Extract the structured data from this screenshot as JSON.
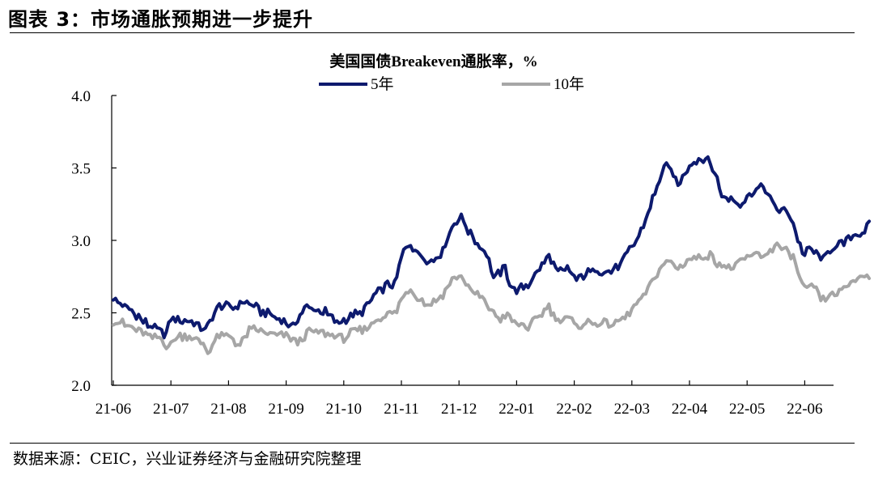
{
  "figure": {
    "title": "图表 3：市场通胀预期进一步提升",
    "source": "数据来源：CEIC，兴业证券经济与金融研究院整理"
  },
  "chart_data": {
    "type": "line",
    "title": "美国国债Breakeven通胀率，%",
    "xlabel": "",
    "ylabel": "",
    "ylim": [
      2.0,
      4.0
    ],
    "yticks": [
      "2.0",
      "2.5",
      "3.0",
      "3.5",
      "4.0"
    ],
    "xticks": [
      "21-06",
      "21-07",
      "21-08",
      "21-09",
      "21-10",
      "21-11",
      "21-12",
      "22-01",
      "22-02",
      "22-03",
      "22-04",
      "22-05",
      "22-06"
    ],
    "grid": false,
    "legend_position": "top",
    "series": [
      {
        "name": "5年",
        "color": "#0d1a6e",
        "anchors": [
          [
            0,
            2.6
          ],
          [
            0.3,
            2.52
          ],
          [
            0.6,
            2.42
          ],
          [
            0.9,
            2.34
          ],
          [
            1.0,
            2.46
          ],
          [
            1.3,
            2.44
          ],
          [
            1.6,
            2.39
          ],
          [
            1.85,
            2.55
          ],
          [
            2.1,
            2.54
          ],
          [
            2.3,
            2.58
          ],
          [
            2.6,
            2.5
          ],
          [
            2.9,
            2.46
          ],
          [
            3.1,
            2.4
          ],
          [
            3.3,
            2.53
          ],
          [
            3.5,
            2.53
          ],
          [
            3.7,
            2.5
          ],
          [
            3.9,
            2.42
          ],
          [
            4.1,
            2.48
          ],
          [
            4.3,
            2.5
          ],
          [
            4.5,
            2.6
          ],
          [
            4.75,
            2.7
          ],
          [
            4.9,
            2.7
          ],
          [
            5.0,
            2.89
          ],
          [
            5.15,
            2.98
          ],
          [
            5.3,
            2.9
          ],
          [
            5.5,
            2.85
          ],
          [
            5.7,
            2.92
          ],
          [
            5.9,
            3.11
          ],
          [
            6.05,
            3.17
          ],
          [
            6.15,
            3.07
          ],
          [
            6.3,
            2.99
          ],
          [
            6.5,
            2.9
          ],
          [
            6.6,
            2.73
          ],
          [
            6.8,
            2.81
          ],
          [
            6.9,
            2.68
          ],
          [
            7.0,
            2.65
          ],
          [
            7.2,
            2.7
          ],
          [
            7.4,
            2.8
          ],
          [
            7.55,
            2.9
          ],
          [
            7.7,
            2.78
          ],
          [
            7.9,
            2.8
          ],
          [
            8.05,
            2.72
          ],
          [
            8.2,
            2.78
          ],
          [
            8.4,
            2.8
          ],
          [
            8.6,
            2.78
          ],
          [
            8.8,
            2.83
          ],
          [
            9.0,
            2.96
          ],
          [
            9.15,
            3.05
          ],
          [
            9.3,
            3.22
          ],
          [
            9.45,
            3.38
          ],
          [
            9.55,
            3.52
          ],
          [
            9.7,
            3.48
          ],
          [
            9.8,
            3.37
          ],
          [
            10.0,
            3.52
          ],
          [
            10.15,
            3.56
          ],
          [
            10.3,
            3.58
          ],
          [
            10.45,
            3.45
          ],
          [
            10.6,
            3.28
          ],
          [
            10.75,
            3.3
          ],
          [
            10.85,
            3.25
          ],
          [
            11.0,
            3.3
          ],
          [
            11.15,
            3.35
          ],
          [
            11.3,
            3.37
          ],
          [
            11.45,
            3.25
          ],
          [
            11.6,
            3.2
          ],
          [
            11.75,
            3.18
          ],
          [
            11.9,
            2.98
          ],
          [
            12.0,
            2.9
          ],
          [
            12.1,
            2.95
          ],
          [
            12.3,
            2.87
          ],
          [
            12.5,
            2.95
          ],
          [
            12.7,
            2.98
          ],
          [
            12.8,
            3.03
          ],
          [
            13.0,
            3.05
          ],
          [
            13.15,
            3.13
          ]
        ]
      },
      {
        "name": "10年",
        "color": "#a6a6a6",
        "anchors": [
          [
            0,
            2.45
          ],
          [
            0.3,
            2.4
          ],
          [
            0.5,
            2.37
          ],
          [
            0.65,
            2.33
          ],
          [
            0.8,
            2.33
          ],
          [
            0.95,
            2.26
          ],
          [
            1.1,
            2.34
          ],
          [
            1.3,
            2.34
          ],
          [
            1.55,
            2.29
          ],
          [
            1.65,
            2.23
          ],
          [
            1.8,
            2.33
          ],
          [
            2.0,
            2.34
          ],
          [
            2.2,
            2.28
          ],
          [
            2.35,
            2.38
          ],
          [
            2.55,
            2.38
          ],
          [
            2.75,
            2.35
          ],
          [
            3.0,
            2.35
          ],
          [
            3.2,
            2.3
          ],
          [
            3.4,
            2.37
          ],
          [
            3.6,
            2.37
          ],
          [
            3.8,
            2.35
          ],
          [
            4.0,
            2.32
          ],
          [
            4.15,
            2.37
          ],
          [
            4.35,
            2.38
          ],
          [
            4.5,
            2.43
          ],
          [
            4.7,
            2.48
          ],
          [
            4.9,
            2.5
          ],
          [
            5.0,
            2.6
          ],
          [
            5.15,
            2.67
          ],
          [
            5.3,
            2.6
          ],
          [
            5.5,
            2.55
          ],
          [
            5.7,
            2.62
          ],
          [
            5.9,
            2.73
          ],
          [
            6.05,
            2.76
          ],
          [
            6.2,
            2.65
          ],
          [
            6.35,
            2.62
          ],
          [
            6.55,
            2.53
          ],
          [
            6.7,
            2.45
          ],
          [
            6.85,
            2.48
          ],
          [
            7.0,
            2.42
          ],
          [
            7.2,
            2.4
          ],
          [
            7.4,
            2.48
          ],
          [
            7.55,
            2.55
          ],
          [
            7.7,
            2.45
          ],
          [
            7.9,
            2.47
          ],
          [
            8.05,
            2.39
          ],
          [
            8.2,
            2.43
          ],
          [
            8.45,
            2.43
          ],
          [
            8.7,
            2.42
          ],
          [
            8.9,
            2.48
          ],
          [
            9.05,
            2.55
          ],
          [
            9.2,
            2.6
          ],
          [
            9.35,
            2.72
          ],
          [
            9.5,
            2.82
          ],
          [
            9.65,
            2.87
          ],
          [
            9.8,
            2.8
          ],
          [
            10.0,
            2.88
          ],
          [
            10.2,
            2.88
          ],
          [
            10.35,
            2.91
          ],
          [
            10.5,
            2.84
          ],
          [
            10.7,
            2.8
          ],
          [
            10.9,
            2.85
          ],
          [
            11.1,
            2.9
          ],
          [
            11.35,
            2.9
          ],
          [
            11.5,
            2.98
          ],
          [
            11.65,
            2.93
          ],
          [
            11.8,
            2.88
          ],
          [
            11.95,
            2.7
          ],
          [
            12.05,
            2.65
          ],
          [
            12.15,
            2.7
          ],
          [
            12.3,
            2.58
          ],
          [
            12.45,
            2.62
          ],
          [
            12.6,
            2.64
          ],
          [
            12.75,
            2.7
          ],
          [
            12.9,
            2.74
          ],
          [
            13.05,
            2.75
          ],
          [
            13.15,
            2.76
          ]
        ]
      }
    ]
  }
}
